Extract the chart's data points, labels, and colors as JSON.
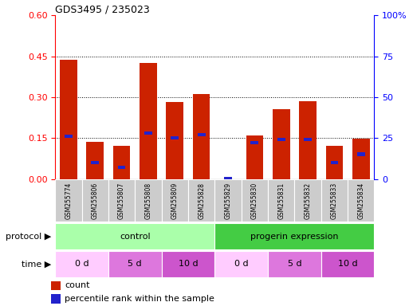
{
  "title": "GDS3495 / 235023",
  "samples": [
    "GSM255774",
    "GSM255806",
    "GSM255807",
    "GSM255808",
    "GSM255809",
    "GSM255828",
    "GSM255829",
    "GSM255830",
    "GSM255831",
    "GSM255832",
    "GSM255833",
    "GSM255834"
  ],
  "count_values": [
    0.438,
    0.135,
    0.122,
    0.425,
    0.282,
    0.31,
    0.0,
    0.16,
    0.255,
    0.285,
    0.122,
    0.148
  ],
  "percentile_values": [
    26,
    10,
    7,
    28,
    25,
    27,
    0,
    22,
    24,
    24,
    10,
    15
  ],
  "ylim_left": [
    0,
    0.6
  ],
  "ylim_right": [
    0,
    100
  ],
  "yticks_left": [
    0,
    0.15,
    0.3,
    0.45,
    0.6
  ],
  "yticks_right": [
    0,
    25,
    50,
    75,
    100
  ],
  "bar_color": "#cc2200",
  "percentile_color": "#2222cc",
  "protocol_groups": [
    {
      "label": "control",
      "start": 0,
      "end": 6,
      "color": "#aaffaa"
    },
    {
      "label": "progerin expression",
      "start": 6,
      "end": 12,
      "color": "#44cc44"
    }
  ],
  "time_groups": [
    {
      "label": "0 d",
      "start": 0,
      "end": 2,
      "color": "#ffccff"
    },
    {
      "label": "5 d",
      "start": 2,
      "end": 4,
      "color": "#dd77dd"
    },
    {
      "label": "10 d",
      "start": 4,
      "end": 6,
      "color": "#cc55cc"
    },
    {
      "label": "0 d",
      "start": 6,
      "end": 8,
      "color": "#ffccff"
    },
    {
      "label": "5 d",
      "start": 8,
      "end": 10,
      "color": "#dd77dd"
    },
    {
      "label": "10 d",
      "start": 10,
      "end": 12,
      "color": "#cc55cc"
    }
  ],
  "legend_count_label": "count",
  "legend_percentile_label": "percentile rank within the sample",
  "sample_box_color": "#cccccc",
  "arrow_color": "#999999",
  "protocol_label": "protocol",
  "time_label": "time"
}
